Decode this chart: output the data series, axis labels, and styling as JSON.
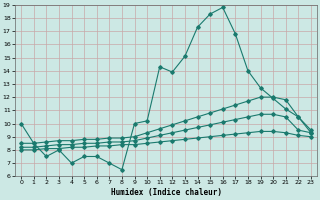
{
  "xlabel": "Humidex (Indice chaleur)",
  "color": "#1a7a6e",
  "bg_color": "#cce8e4",
  "grid_color": "#aacfca",
  "ylim": [
    6,
    19
  ],
  "xlim": [
    -0.5,
    23.5
  ],
  "yticks": [
    6,
    7,
    8,
    9,
    10,
    11,
    12,
    13,
    14,
    15,
    16,
    17,
    18,
    19
  ],
  "xticks": [
    0,
    1,
    2,
    3,
    4,
    5,
    6,
    7,
    8,
    9,
    10,
    11,
    12,
    13,
    14,
    15,
    16,
    17,
    18,
    19,
    20,
    21,
    22,
    23
  ],
  "line_main_x": [
    0,
    1,
    2,
    3,
    4,
    5,
    6,
    7,
    8,
    9,
    10,
    11,
    12,
    13,
    14,
    15,
    16,
    17,
    18,
    19,
    20,
    21,
    22,
    23
  ],
  "line_main_y": [
    10,
    8.5,
    7.5,
    8.0,
    7.0,
    7.5,
    7.5,
    7.0,
    6.5,
    10.0,
    10.2,
    14.3,
    13.9,
    15.1,
    17.3,
    18.3,
    18.8,
    16.8,
    14.0,
    12.7,
    11.9,
    11.1,
    10.5,
    9.3
  ],
  "line_upper_x": [
    0,
    1,
    2,
    3,
    4,
    5,
    6,
    7,
    8,
    9,
    10,
    11,
    12,
    13,
    14,
    15,
    16,
    17,
    18,
    19,
    20,
    21,
    22,
    23
  ],
  "line_upper_y": [
    8.5,
    8.5,
    8.6,
    8.7,
    8.7,
    8.8,
    8.8,
    8.9,
    8.9,
    9.0,
    9.3,
    9.6,
    9.9,
    10.2,
    10.5,
    10.8,
    11.1,
    11.4,
    11.7,
    12.0,
    12.0,
    11.8,
    10.5,
    9.5
  ],
  "line_mid_x": [
    0,
    1,
    2,
    3,
    4,
    5,
    6,
    7,
    8,
    9,
    10,
    11,
    12,
    13,
    14,
    15,
    16,
    17,
    18,
    19,
    20,
    21,
    22,
    23
  ],
  "line_mid_y": [
    8.2,
    8.2,
    8.3,
    8.4,
    8.4,
    8.5,
    8.5,
    8.6,
    8.6,
    8.7,
    8.9,
    9.1,
    9.3,
    9.5,
    9.7,
    9.9,
    10.1,
    10.3,
    10.5,
    10.7,
    10.7,
    10.5,
    9.5,
    9.3
  ],
  "line_lower_x": [
    0,
    1,
    2,
    3,
    4,
    5,
    6,
    7,
    8,
    9,
    10,
    11,
    12,
    13,
    14,
    15,
    16,
    17,
    18,
    19,
    20,
    21,
    22,
    23
  ],
  "line_lower_y": [
    8.0,
    8.0,
    8.1,
    8.1,
    8.2,
    8.2,
    8.3,
    8.3,
    8.4,
    8.4,
    8.5,
    8.6,
    8.7,
    8.8,
    8.9,
    9.0,
    9.1,
    9.2,
    9.3,
    9.4,
    9.4,
    9.3,
    9.1,
    9.0
  ]
}
